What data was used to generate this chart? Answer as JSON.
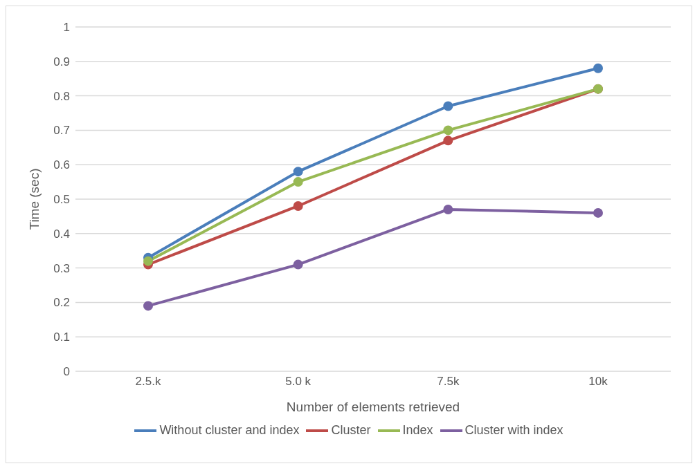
{
  "chart_data": {
    "type": "line",
    "xlabel": "Number of elements retrieved",
    "ylabel": "Time (sec)",
    "categories": [
      "2.5.k",
      "5.0 k",
      "7.5k",
      "10k"
    ],
    "series": [
      {
        "name": "Without cluster and index",
        "color": "#4a7ebb",
        "values": [
          0.33,
          0.58,
          0.77,
          0.88
        ]
      },
      {
        "name": "Cluster",
        "color": "#be4b48",
        "values": [
          0.31,
          0.48,
          0.67,
          0.82
        ]
      },
      {
        "name": "Index",
        "color": "#98b954",
        "values": [
          0.32,
          0.55,
          0.7,
          0.82
        ]
      },
      {
        "name": "Cluster with index",
        "color": "#7d60a0",
        "values": [
          0.19,
          0.31,
          0.47,
          0.46
        ]
      }
    ],
    "ylim": [
      0,
      1
    ],
    "yticks": [
      0,
      0.1,
      0.2,
      0.3,
      0.4,
      0.5,
      0.6,
      0.7,
      0.8,
      0.9,
      1
    ],
    "grid": "y",
    "legend": "bottom",
    "marker": "circle",
    "line_style": "solid"
  }
}
